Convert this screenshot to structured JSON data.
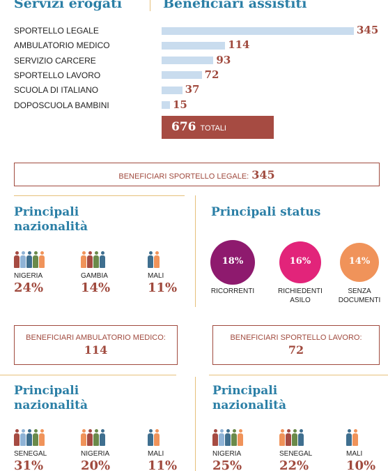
{
  "header": {
    "left": "Servizi erogati",
    "right": "Beneficiari assistiti"
  },
  "chart_data": {
    "type": "bar",
    "orientation": "horizontal",
    "categories": [
      "SPORTELLO LEGALE",
      "AMBULATORIO MEDICO",
      "SERVIZIO CARCERE",
      "SPORTELLO LAVORO",
      "SCUOLA DI ITALIANO",
      "DOPOSCUOLA BAMBINI"
    ],
    "values": [
      345,
      114,
      93,
      72,
      37,
      15
    ],
    "color": "#c9dcee",
    "xlim": [
      0,
      345
    ]
  },
  "total": {
    "value": "676",
    "label": "TOTALI"
  },
  "legal": {
    "label": "BENEFICIARI SPORTELLO LEGALE:",
    "value": "345",
    "nationalities": {
      "title": "Principali nazionalità",
      "items": [
        {
          "country": "NIGERIA",
          "share": "24%"
        },
        {
          "country": "GAMBIA",
          "share": "14%"
        },
        {
          "country": "MALI",
          "share": "11%"
        }
      ]
    },
    "status": {
      "title": "Principali status",
      "items": [
        {
          "value": 18,
          "label": "18%",
          "name": "RICORRENTI",
          "color": "#8e1a6e"
        },
        {
          "value": 16,
          "label": "16%",
          "name": "RICHIEDENTI ASILO",
          "color": "#e2247a"
        },
        {
          "value": 14,
          "label": "14%",
          "name": "SENZA DOCUMENTI",
          "color": "#f0935a"
        }
      ]
    }
  },
  "medical": {
    "label": "BENEFICIARI AMBULATORIO MEDICO:",
    "value": "114",
    "nationalities": {
      "title": "Principali nazionalità",
      "items": [
        {
          "country": "SENEGAL",
          "share": "31%"
        },
        {
          "country": "NIGERIA",
          "share": "20%"
        },
        {
          "country": "MALI",
          "share": "11%"
        }
      ]
    }
  },
  "labour": {
    "label": "BENEFICIARI SPORTELLO LAVORO:",
    "value": "72",
    "nationalities": {
      "title": "Principali nazionalità",
      "items": [
        {
          "country": "NIGERIA",
          "share": "25%"
        },
        {
          "country": "SENEGAL",
          "share": "22%"
        },
        {
          "country": "MALI",
          "share": "10%"
        }
      ]
    }
  }
}
